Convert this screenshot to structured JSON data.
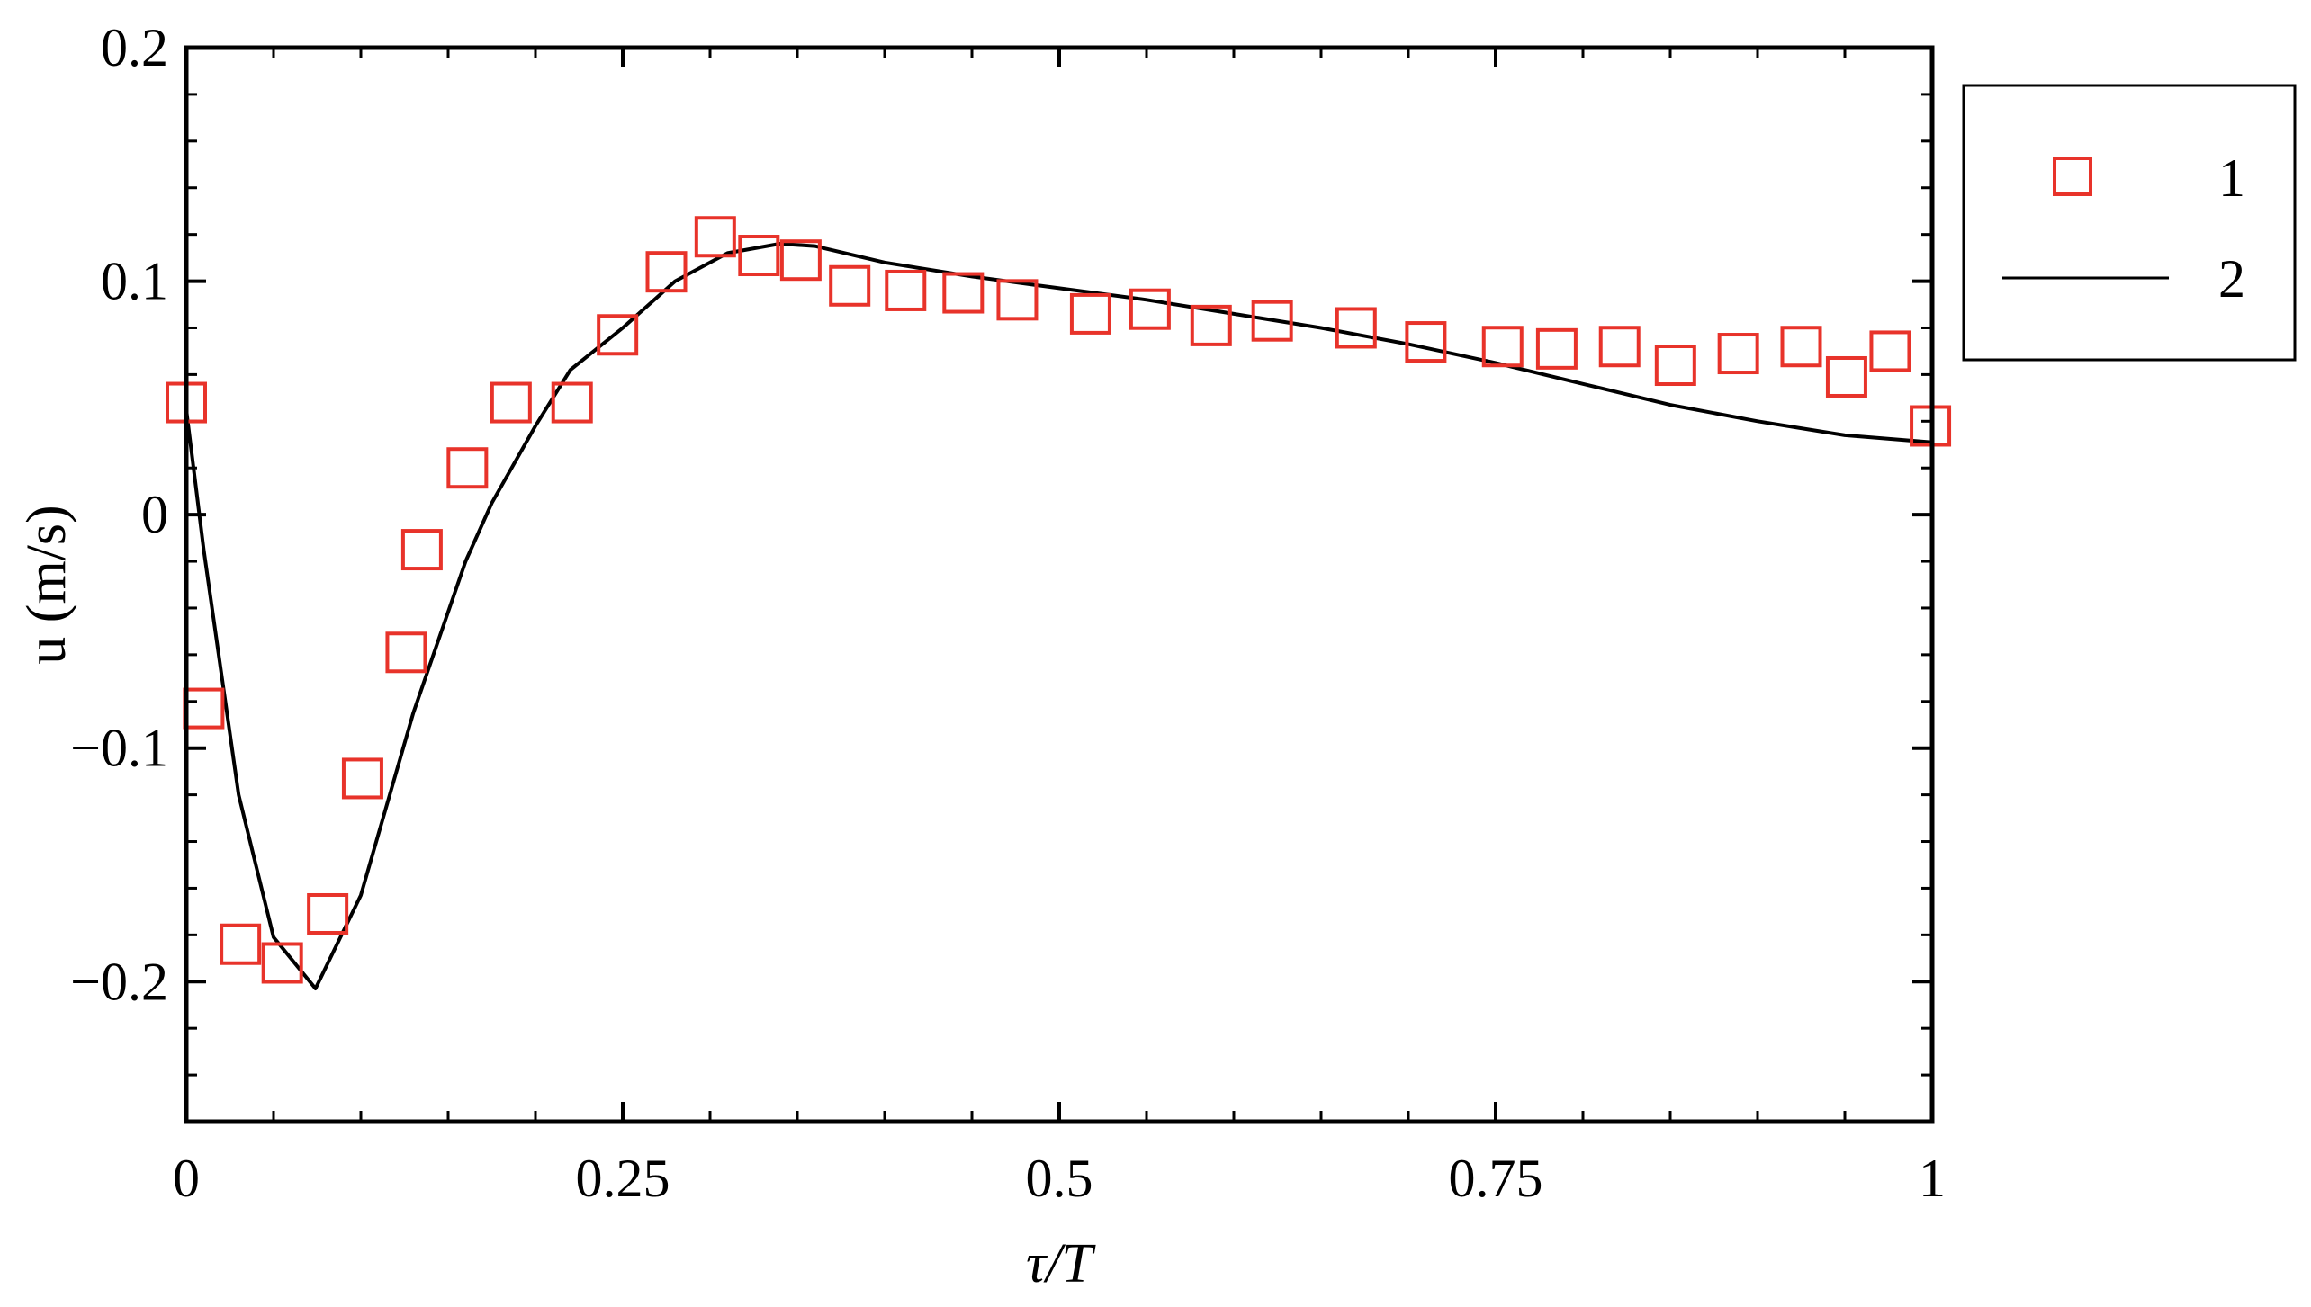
{
  "chart_data": {
    "type": "scatter",
    "xlabel": "τ/T",
    "ylabel": "u (m/s)",
    "xlim": [
      0,
      1
    ],
    "ylim": [
      -0.26,
      0.2
    ],
    "x_ticks": [
      0,
      0.25,
      0.5,
      0.75,
      1
    ],
    "x_tick_labels": [
      "0",
      "0.25",
      "0.5",
      "0.75",
      "1"
    ],
    "y_ticks": [
      -0.2,
      -0.1,
      0,
      0.1,
      0.2
    ],
    "y_tick_labels": [
      "−0.2",
      "−0.1",
      "0",
      "0.1",
      "0.2"
    ],
    "legend_position": "right",
    "series": [
      {
        "name": "1",
        "kind": "markers",
        "marker": "open-square",
        "color": "#e8332a",
        "points": [
          [
            0.0,
            0.048
          ],
          [
            0.01,
            -0.083
          ],
          [
            0.031,
            -0.184
          ],
          [
            0.055,
            -0.192
          ],
          [
            0.081,
            -0.171
          ],
          [
            0.101,
            -0.113
          ],
          [
            0.126,
            -0.059
          ],
          [
            0.135,
            -0.015
          ],
          [
            0.161,
            0.02
          ],
          [
            0.186,
            0.048
          ],
          [
            0.221,
            0.048
          ],
          [
            0.247,
            0.077
          ],
          [
            0.275,
            0.104
          ],
          [
            0.303,
            0.119
          ],
          [
            0.328,
            0.111
          ],
          [
            0.352,
            0.109
          ],
          [
            0.38,
            0.098
          ],
          [
            0.412,
            0.096
          ],
          [
            0.445,
            0.095
          ],
          [
            0.476,
            0.092
          ],
          [
            0.518,
            0.086
          ],
          [
            0.552,
            0.088
          ],
          [
            0.587,
            0.081
          ],
          [
            0.622,
            0.083
          ],
          [
            0.67,
            0.08
          ],
          [
            0.71,
            0.074
          ],
          [
            0.754,
            0.072
          ],
          [
            0.785,
            0.071
          ],
          [
            0.821,
            0.072
          ],
          [
            0.853,
            0.064
          ],
          [
            0.889,
            0.069
          ],
          [
            0.925,
            0.072
          ],
          [
            0.951,
            0.059
          ],
          [
            0.976,
            0.07
          ],
          [
            0.999,
            0.038
          ]
        ]
      },
      {
        "name": "2",
        "kind": "line",
        "color": "#000000",
        "points": [
          [
            0.0,
            0.045
          ],
          [
            0.01,
            -0.015
          ],
          [
            0.03,
            -0.12
          ],
          [
            0.05,
            -0.181
          ],
          [
            0.074,
            -0.203
          ],
          [
            0.1,
            -0.163
          ],
          [
            0.13,
            -0.085
          ],
          [
            0.16,
            -0.02
          ],
          [
            0.175,
            0.005
          ],
          [
            0.2,
            0.038
          ],
          [
            0.22,
            0.062
          ],
          [
            0.25,
            0.08
          ],
          [
            0.28,
            0.1
          ],
          [
            0.31,
            0.112
          ],
          [
            0.34,
            0.116
          ],
          [
            0.36,
            0.115
          ],
          [
            0.4,
            0.108
          ],
          [
            0.45,
            0.102
          ],
          [
            0.5,
            0.097
          ],
          [
            0.55,
            0.092
          ],
          [
            0.6,
            0.086
          ],
          [
            0.65,
            0.08
          ],
          [
            0.7,
            0.073
          ],
          [
            0.75,
            0.065
          ],
          [
            0.8,
            0.056
          ],
          [
            0.85,
            0.047
          ],
          [
            0.9,
            0.04
          ],
          [
            0.95,
            0.034
          ],
          [
            1.0,
            0.031
          ]
        ]
      }
    ]
  }
}
